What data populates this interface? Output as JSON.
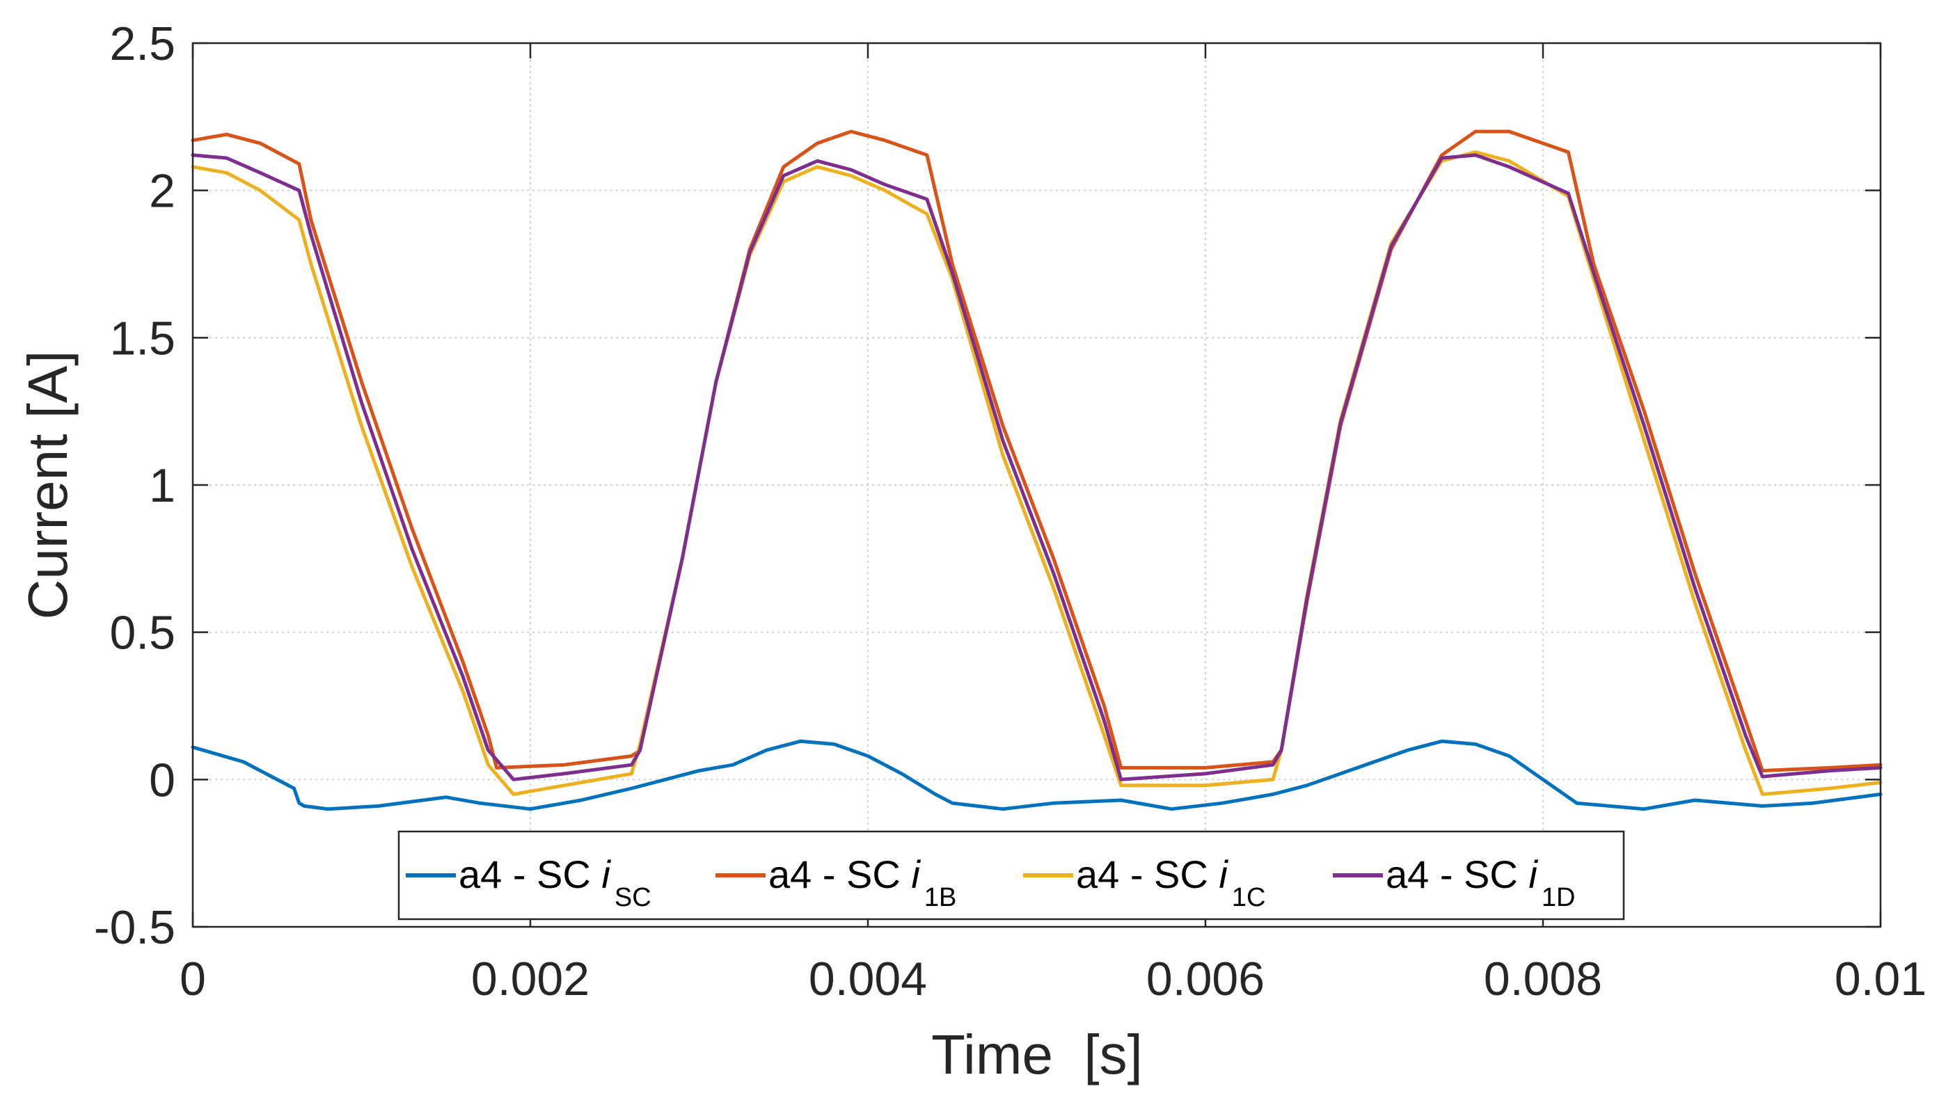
{
  "chart_data": {
    "type": "line",
    "title": "",
    "xlabel": "Time  [s]",
    "ylabel": "Current [A]",
    "xlim": [
      0,
      0.01
    ],
    "ylim": [
      -0.5,
      2.5
    ],
    "xticks": [
      0,
      0.002,
      0.004,
      0.006,
      0.008,
      0.01
    ],
    "xtick_labels": [
      "0",
      "0.002",
      "0.004",
      "0.006",
      "0.008",
      "0.01"
    ],
    "yticks": [
      -0.5,
      0,
      0.5,
      1,
      1.5,
      2,
      2.5
    ],
    "ytick_labels": [
      "-0.5",
      "0",
      "0.5",
      "1",
      "1.5",
      "2",
      "2.5"
    ],
    "grid": true,
    "legend_position": "bottom-center",
    "series": [
      {
        "name": "a4 - SC i_SC",
        "legend_main": "a4 - SC ",
        "legend_var": "i",
        "legend_sub": "SC",
        "color": "#0072BD",
        "x": [
          0,
          0.0003,
          0.0006,
          0.00063,
          0.00066,
          0.0008,
          0.0011,
          0.0015,
          0.0017,
          0.002,
          0.0023,
          0.0026,
          0.0028,
          0.003,
          0.0032,
          0.0034,
          0.0036,
          0.0038,
          0.004,
          0.0042,
          0.0044,
          0.0045,
          0.0048,
          0.0051,
          0.0055,
          0.0058,
          0.0061,
          0.0064,
          0.0066,
          0.0068,
          0.007,
          0.0072,
          0.0074,
          0.0076,
          0.0078,
          0.008,
          0.0082,
          0.0086,
          0.0089,
          0.0093,
          0.0096,
          0.01
        ],
        "y": [
          0.11,
          0.06,
          -0.03,
          -0.08,
          -0.09,
          -0.1,
          -0.09,
          -0.06,
          -0.08,
          -0.1,
          -0.07,
          -0.03,
          0.0,
          0.03,
          0.05,
          0.1,
          0.13,
          0.12,
          0.08,
          0.02,
          -0.05,
          -0.08,
          -0.1,
          -0.08,
          -0.07,
          -0.1,
          -0.08,
          -0.05,
          -0.02,
          0.02,
          0.06,
          0.1,
          0.13,
          0.12,
          0.08,
          0.0,
          -0.08,
          -0.1,
          -0.07,
          -0.09,
          -0.08,
          -0.05
        ]
      },
      {
        "name": "a4 - SC i_1B",
        "legend_main": "a4 - SC ",
        "legend_var": "i",
        "legend_sub": "1B",
        "color": "#D95319",
        "x": [
          0,
          0.0002,
          0.0004,
          0.00063,
          0.0007,
          0.001,
          0.0013,
          0.0016,
          0.00175,
          0.0018,
          0.0022,
          0.0026,
          0.00265,
          0.0029,
          0.0031,
          0.0033,
          0.0035,
          0.0037,
          0.0039,
          0.0041,
          0.00435,
          0.0045,
          0.0048,
          0.0051,
          0.0054,
          0.0055,
          0.006,
          0.0064,
          0.00645,
          0.0066,
          0.0068,
          0.0071,
          0.0074,
          0.0076,
          0.0078,
          0.00815,
          0.0083,
          0.0086,
          0.0089,
          0.0092,
          0.0093,
          0.0097,
          0.01
        ],
        "y": [
          2.17,
          2.19,
          2.16,
          2.09,
          1.9,
          1.35,
          0.85,
          0.4,
          0.15,
          0.04,
          0.05,
          0.08,
          0.1,
          0.75,
          1.35,
          1.8,
          2.08,
          2.16,
          2.2,
          2.17,
          2.12,
          1.75,
          1.2,
          0.75,
          0.25,
          0.04,
          0.04,
          0.06,
          0.1,
          0.6,
          1.2,
          1.8,
          2.12,
          2.2,
          2.2,
          2.13,
          1.75,
          1.25,
          0.7,
          0.2,
          0.03,
          0.04,
          0.05
        ]
      },
      {
        "name": "a4 - SC i_1C",
        "legend_main": "a4 - SC ",
        "legend_var": "i",
        "legend_sub": "1C",
        "color": "#EDB120",
        "x": [
          0,
          0.0002,
          0.0004,
          0.00063,
          0.0007,
          0.001,
          0.0013,
          0.0016,
          0.00175,
          0.0019,
          0.0022,
          0.0026,
          0.00265,
          0.0029,
          0.0031,
          0.0033,
          0.0035,
          0.0037,
          0.0039,
          0.0041,
          0.00435,
          0.0045,
          0.0048,
          0.0051,
          0.0054,
          0.0055,
          0.006,
          0.0064,
          0.00645,
          0.0066,
          0.0068,
          0.0071,
          0.0074,
          0.0076,
          0.0078,
          0.00815,
          0.0083,
          0.0086,
          0.0089,
          0.0092,
          0.0093,
          0.0097,
          0.01
        ],
        "y": [
          2.08,
          2.06,
          2.0,
          1.9,
          1.75,
          1.2,
          0.72,
          0.3,
          0.05,
          -0.05,
          -0.02,
          0.02,
          0.12,
          0.75,
          1.35,
          1.78,
          2.03,
          2.08,
          2.05,
          2.0,
          1.92,
          1.7,
          1.1,
          0.65,
          0.15,
          -0.02,
          -0.02,
          0.0,
          0.1,
          0.62,
          1.22,
          1.82,
          2.1,
          2.13,
          2.1,
          1.98,
          1.7,
          1.15,
          0.6,
          0.1,
          -0.05,
          -0.03,
          -0.01
        ]
      },
      {
        "name": "a4 - SC i_1D",
        "legend_main": "a4 - SC ",
        "legend_var": "i",
        "legend_sub": "1D",
        "color": "#7E2F8E",
        "x": [
          0,
          0.0002,
          0.0004,
          0.00063,
          0.0007,
          0.001,
          0.0013,
          0.0016,
          0.00175,
          0.0019,
          0.0022,
          0.0026,
          0.00265,
          0.0029,
          0.0031,
          0.0033,
          0.0035,
          0.0037,
          0.0039,
          0.0041,
          0.00435,
          0.0045,
          0.0048,
          0.0051,
          0.0054,
          0.0055,
          0.006,
          0.0064,
          0.00645,
          0.0066,
          0.0068,
          0.0071,
          0.0074,
          0.0076,
          0.0078,
          0.00815,
          0.0083,
          0.0086,
          0.0089,
          0.0092,
          0.0093,
          0.0097,
          0.01
        ],
        "y": [
          2.12,
          2.11,
          2.06,
          2.0,
          1.85,
          1.28,
          0.78,
          0.35,
          0.1,
          0.0,
          0.02,
          0.05,
          0.1,
          0.75,
          1.35,
          1.79,
          2.05,
          2.1,
          2.07,
          2.02,
          1.97,
          1.72,
          1.15,
          0.7,
          0.2,
          0.0,
          0.02,
          0.05,
          0.1,
          0.61,
          1.21,
          1.81,
          2.11,
          2.12,
          2.08,
          1.99,
          1.72,
          1.2,
          0.65,
          0.15,
          0.01,
          0.03,
          0.04
        ]
      }
    ]
  }
}
